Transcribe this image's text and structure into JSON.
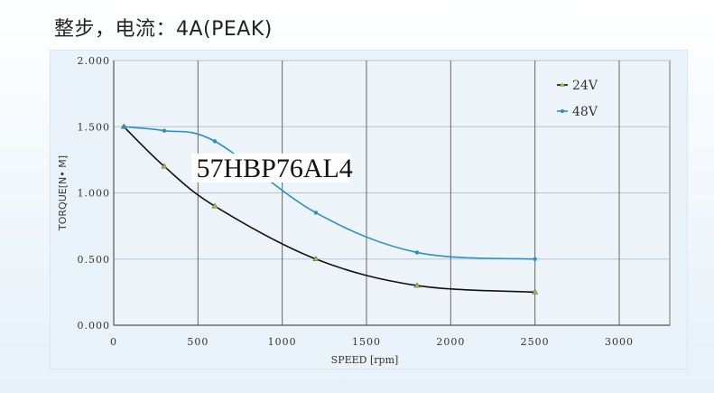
{
  "title": "整步，电流：4A(PEAK)",
  "chart_data": {
    "type": "line",
    "title": "",
    "annotation": "57HBP76AL4",
    "xlabel": "SPEED [rpm]",
    "ylabel": "TORQUE[N• M]",
    "xlim": [
      0,
      3300
    ],
    "ylim": [
      0,
      2.0
    ],
    "xticks": [
      "0",
      "500",
      "1000",
      "1500",
      "2000",
      "2500",
      "3000"
    ],
    "yticks": [
      "0.000",
      "0.500",
      "1.000",
      "1.500",
      "2.000"
    ],
    "grid": true,
    "legend_position": "top-right",
    "series": [
      {
        "name": "24V",
        "color": "#111111",
        "marker": "triangle",
        "x": [
          60,
          300,
          600,
          1200,
          1800,
          2500
        ],
        "y": [
          1.5,
          1.2,
          0.9,
          0.5,
          0.3,
          0.25
        ]
      },
      {
        "name": "48V",
        "color": "#2a8fc8",
        "marker": "dot",
        "x": [
          60,
          300,
          600,
          1200,
          1800,
          2500
        ],
        "y": [
          1.5,
          1.47,
          1.39,
          0.85,
          0.55,
          0.5
        ]
      }
    ]
  }
}
